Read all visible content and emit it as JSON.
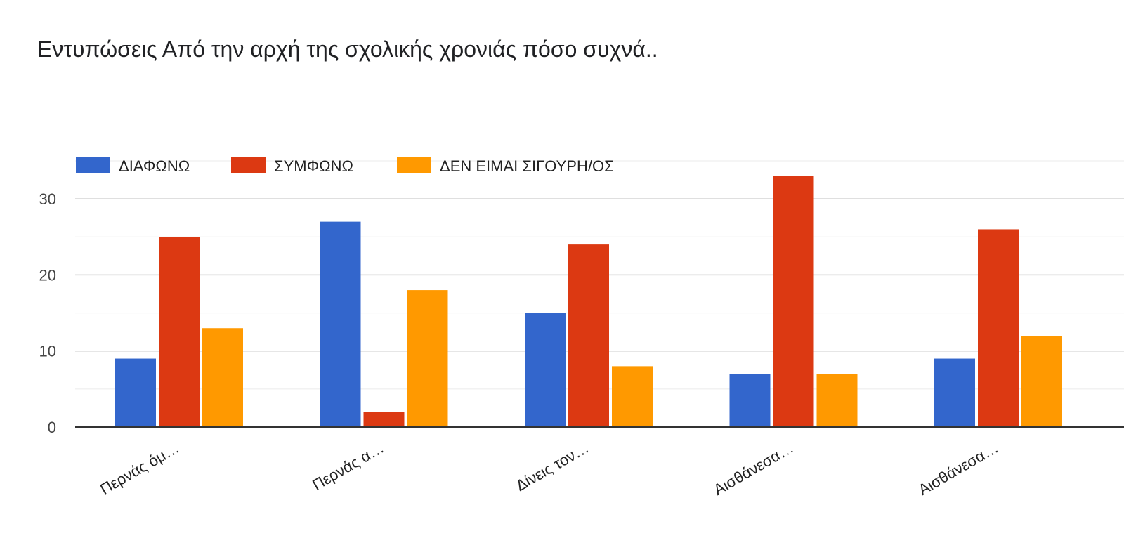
{
  "chart_data": {
    "type": "bar",
    "title": "Εντυπώσεις Από την αρχή της σχολικής χρονιάς πόσο συχνά..",
    "xlabel": "",
    "ylabel": "",
    "categories": [
      "Περνάς όμ…",
      "Περνάς α…",
      "Δίνεις τον…",
      "Αισθάνεσα…",
      "Αισθάνεσα…"
    ],
    "series": [
      {
        "name": "ΔΙΑΦΩΝΩ",
        "color": "#3366cc",
        "values": [
          9,
          27,
          15,
          7,
          9
        ]
      },
      {
        "name": "ΣΥΜΦΩΝΩ",
        "color": "#dc3912",
        "values": [
          25,
          2,
          24,
          33,
          26
        ]
      },
      {
        "name": "ΔΕΝ ΕΙΜΑΙ ΣΙΓΟΥΡΗ/ΟΣ",
        "color": "#ff9900",
        "values": [
          13,
          18,
          8,
          7,
          12
        ]
      }
    ],
    "ylim": [
      0,
      35
    ],
    "yticks": [
      0,
      10,
      20,
      30
    ],
    "grid": true,
    "legend_position": "top"
  }
}
